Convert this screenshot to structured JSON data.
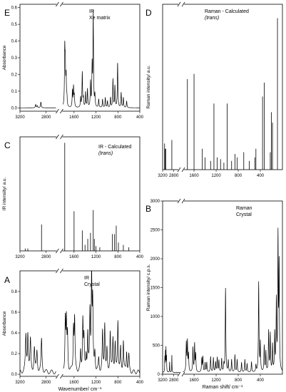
{
  "chart_data": [
    {
      "id": "E",
      "type": "line",
      "panel_letter": "E",
      "annotations": [
        "IR",
        "Xe matrix"
      ],
      "ylabel": "Absorbance",
      "xlabel": "",
      "xlim": [
        3200,
        400
      ],
      "ylim": [
        -0.02,
        0.62
      ],
      "x_break": [
        2650,
        1800
      ],
      "x_ticks": [
        "3200",
        "2800",
        "1600",
        "1200",
        "800",
        "400"
      ],
      "y_ticks": [
        "0.0",
        "0.1",
        "0.2",
        "0.3",
        "0.4",
        "0.5",
        "0.6"
      ],
      "style": "spectrum",
      "peaks": [
        [
          2960,
          0.02
        ],
        [
          2935,
          0.012
        ],
        [
          2880,
          0.035
        ],
        [
          1770,
          0.33
        ],
        [
          1760,
          0.23
        ],
        [
          1745,
          0.17
        ],
        [
          1730,
          0.05
        ],
        [
          1630,
          0.1
        ],
        [
          1610,
          0.12
        ],
        [
          1595,
          0.07
        ],
        [
          1480,
          0.06
        ],
        [
          1450,
          0.21
        ],
        [
          1430,
          0.05
        ],
        [
          1390,
          0.09
        ],
        [
          1355,
          0.11
        ],
        [
          1300,
          0.15
        ],
        [
          1270,
          0.24
        ],
        [
          1250,
          0.56
        ],
        [
          1220,
          0.07
        ],
        [
          1150,
          0.05
        ],
        [
          1080,
          0.05
        ],
        [
          1030,
          0.06
        ],
        [
          990,
          0.04
        ],
        [
          935,
          0.06
        ],
        [
          890,
          0.17
        ],
        [
          855,
          0.13
        ],
        [
          805,
          0.27
        ],
        [
          740,
          0.09
        ],
        [
          700,
          0.06
        ],
        [
          640,
          0.04
        ]
      ]
    },
    {
      "id": "D",
      "type": "line",
      "panel_letter": "D",
      "annotations": [
        "Raman - Calculated",
        "(trans)"
      ],
      "ylabel": "Raman intensity/ a.u.",
      "xlabel": "",
      "xlim": [
        3200,
        0
      ],
      "ylim": [
        0,
        95
      ],
      "x_ticks": [
        "3200",
        "2800",
        "1600",
        "1200",
        "800",
        "400"
      ],
      "y_ticks": [],
      "style": "stick",
      "peaks": [
        [
          3130,
          15
        ],
        [
          3110,
          12
        ],
        [
          3090,
          12
        ],
        [
          2870,
          17
        ],
        [
          1720,
          52
        ],
        [
          1600,
          55
        ],
        [
          1450,
          12
        ],
        [
          1400,
          7
        ],
        [
          1300,
          5
        ],
        [
          1240,
          38
        ],
        [
          1180,
          7
        ],
        [
          1120,
          6
        ],
        [
          1060,
          4
        ],
        [
          1000,
          38
        ],
        [
          920,
          5
        ],
        [
          860,
          9
        ],
        [
          820,
          7
        ],
        [
          700,
          10
        ],
        [
          600,
          5
        ],
        [
          500,
          7
        ],
        [
          480,
          12
        ],
        [
          360,
          42
        ],
        [
          330,
          50
        ],
        [
          220,
          10
        ],
        [
          200,
          33
        ],
        [
          180,
          27
        ],
        [
          90,
          87
        ]
      ]
    },
    {
      "id": "C",
      "type": "line",
      "panel_letter": "C",
      "annotations": [
        "IR - Calculated",
        "(trans)"
      ],
      "ylabel": "IR intensity/ a.u.",
      "xlabel": "",
      "xlim": [
        3200,
        400
      ],
      "ylim": [
        0,
        95
      ],
      "x_break": [
        2650,
        1800
      ],
      "x_ticks": [
        "3200",
        "2800",
        "1600",
        "1200",
        "800",
        "400"
      ],
      "y_ticks": [],
      "style": "stick",
      "peaks": [
        [
          3120,
          2
        ],
        [
          3080,
          2
        ],
        [
          2870,
          22
        ],
        [
          1770,
          90
        ],
        [
          1600,
          33
        ],
        [
          1450,
          17
        ],
        [
          1400,
          5
        ],
        [
          1350,
          10
        ],
        [
          1300,
          15
        ],
        [
          1250,
          34
        ],
        [
          1230,
          10
        ],
        [
          1200,
          4
        ],
        [
          1130,
          3
        ],
        [
          900,
          14
        ],
        [
          860,
          14
        ],
        [
          830,
          21
        ],
        [
          790,
          7
        ],
        [
          700,
          5
        ],
        [
          600,
          3
        ]
      ]
    },
    {
      "id": "A",
      "type": "line",
      "panel_letter": "A",
      "annotations": [
        "IR",
        "Crystal"
      ],
      "ylabel": "Absorbance",
      "xlabel": "Wavenumber/ cm⁻¹",
      "xlim": [
        3200,
        400
      ],
      "ylim": [
        -0.02,
        1.0
      ],
      "x_break": [
        2650,
        1800
      ],
      "x_ticks": [
        "3200",
        "2800",
        "1600",
        "1200",
        "800",
        "400"
      ],
      "y_ticks": [
        "0.0",
        "0.2",
        "0.4",
        "0.6",
        "0.8"
      ],
      "style": "spectrum_broad",
      "peaks": [
        [
          3110,
          0.34
        ],
        [
          3080,
          0.37
        ],
        [
          3040,
          0.3
        ],
        [
          2980,
          0.23
        ],
        [
          2940,
          0.2
        ],
        [
          2870,
          0.31
        ],
        [
          1760,
          0.5
        ],
        [
          1740,
          0.45
        ],
        [
          1720,
          0.34
        ],
        [
          1610,
          0.42
        ],
        [
          1590,
          0.49
        ],
        [
          1480,
          0.18
        ],
        [
          1440,
          0.5
        ],
        [
          1420,
          0.3
        ],
        [
          1380,
          0.15
        ],
        [
          1350,
          0.36
        ],
        [
          1310,
          0.55
        ],
        [
          1280,
          0.94
        ],
        [
          1260,
          0.63
        ],
        [
          1220,
          0.18
        ],
        [
          1150,
          0.12
        ],
        [
          1080,
          0.37
        ],
        [
          1040,
          0.47
        ],
        [
          1000,
          0.2
        ],
        [
          940,
          0.38
        ],
        [
          890,
          0.33
        ],
        [
          850,
          0.26
        ],
        [
          800,
          0.5
        ],
        [
          750,
          0.22
        ],
        [
          700,
          0.3
        ],
        [
          640,
          0.2
        ],
        [
          600,
          0.16
        ]
      ]
    },
    {
      "id": "B",
      "type": "line",
      "panel_letter": "B",
      "annotations": [
        "Raman",
        "Crystal"
      ],
      "ylabel": "Raman intensity/ c.p.s.",
      "xlabel": "Raman shift/ cm⁻¹",
      "xlim": [
        3200,
        0
      ],
      "ylim": [
        0,
        3000
      ],
      "x_ticks": [
        "3200",
        "2800",
        "1600",
        "1200",
        "800",
        "400"
      ],
      "y_ticks": [
        "0",
        "500",
        "1000",
        "1500",
        "2000",
        "2500",
        "3000"
      ],
      "style": "spectrum_raman",
      "peaks": [
        [
          3120,
          250
        ],
        [
          3100,
          330
        ],
        [
          3080,
          400
        ],
        [
          3060,
          260
        ],
        [
          2950,
          180
        ],
        [
          2870,
          300
        ],
        [
          1740,
          500
        ],
        [
          1720,
          520
        ],
        [
          1700,
          300
        ],
        [
          1620,
          420
        ],
        [
          1590,
          480
        ],
        [
          1570,
          300
        ],
        [
          1460,
          240
        ],
        [
          1440,
          260
        ],
        [
          1400,
          160
        ],
        [
          1370,
          170
        ],
        [
          1300,
          270
        ],
        [
          1250,
          250
        ],
        [
          1210,
          170
        ],
        [
          1180,
          250
        ],
        [
          1150,
          200
        ],
        [
          1100,
          230
        ],
        [
          1060,
          130
        ],
        [
          1030,
          1450
        ],
        [
          980,
          200
        ],
        [
          920,
          220
        ],
        [
          860,
          300
        ],
        [
          820,
          220
        ],
        [
          740,
          170
        ],
        [
          680,
          220
        ],
        [
          640,
          150
        ],
        [
          560,
          180
        ],
        [
          480,
          120
        ],
        [
          430,
          1550
        ],
        [
          400,
          500
        ],
        [
          330,
          450
        ],
        [
          300,
          350
        ],
        [
          250,
          700
        ],
        [
          220,
          650
        ],
        [
          180,
          460
        ],
        [
          140,
          650
        ],
        [
          110,
          1200
        ],
        [
          80,
          2300
        ],
        [
          60,
          1800
        ]
      ]
    }
  ]
}
